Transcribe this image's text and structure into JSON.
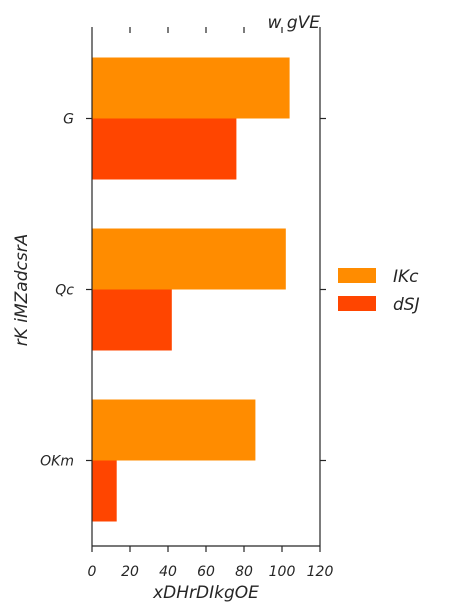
{
  "chart_data": {
    "type": "bar",
    "orientation": "horizontal",
    "title": "w gVE",
    "xlabel": "xDHrDIkgOE",
    "ylabel": "rK iMZadcsrA",
    "categories": [
      "G",
      "Qc",
      "OKm"
    ],
    "series": [
      {
        "name": "IKc",
        "color": "#ff8c00",
        "values": [
          104,
          102,
          86
        ]
      },
      {
        "name": "dSJ",
        "color": "#ff4500",
        "values": [
          76,
          42,
          13
        ]
      }
    ],
    "xlim": [
      0,
      120
    ],
    "xticks": [
      0,
      20,
      40,
      60,
      80,
      100,
      120
    ],
    "grid": false,
    "legend_position": "right"
  }
}
